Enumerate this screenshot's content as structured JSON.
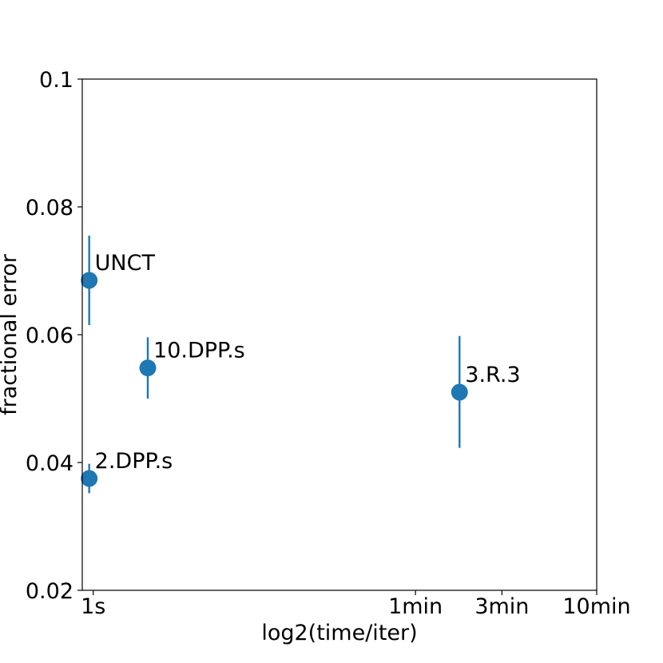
{
  "chart_data": {
    "type": "scatter",
    "xlabel": "log2(time/iter)",
    "ylabel": "fractional error",
    "x_scale": "log2",
    "x_unit": "seconds",
    "xlim": [
      0.87,
      600
    ],
    "ylim": [
      0.02,
      0.1
    ],
    "x_ticks": [
      {
        "value": 1,
        "label": "1s"
      },
      {
        "value": 60,
        "label": "1min"
      },
      {
        "value": 180,
        "label": "3min"
      },
      {
        "value": 600,
        "label": "10min"
      }
    ],
    "y_ticks": [
      {
        "value": 0.02,
        "label": "0.02"
      },
      {
        "value": 0.04,
        "label": "0.04"
      },
      {
        "value": 0.06,
        "label": "0.06"
      },
      {
        "value": 0.08,
        "label": "0.08"
      },
      {
        "value": 0.1,
        "label": "0.1"
      }
    ],
    "grid": false,
    "color": "#1f77b4",
    "points": [
      {
        "label": "UNCT",
        "x": 0.95,
        "y": 0.0685,
        "y_low": 0.0615,
        "y_high": 0.0755
      },
      {
        "label": "10.DPP.s",
        "x": 2.0,
        "y": 0.0548,
        "y_low": 0.05,
        "y_high": 0.0596
      },
      {
        "label": "3.R.3",
        "x": 105,
        "y": 0.051,
        "y_low": 0.0423,
        "y_high": 0.0598
      },
      {
        "label": "2.DPP.s",
        "x": 0.95,
        "y": 0.0375,
        "y_low": 0.0352,
        "y_high": 0.0398
      }
    ]
  }
}
